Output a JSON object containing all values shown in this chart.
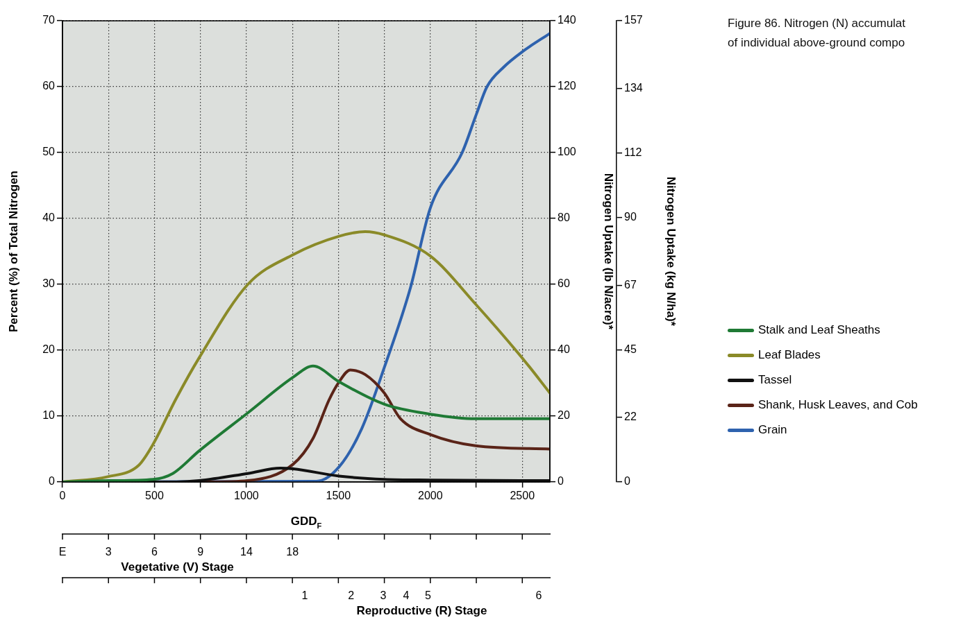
{
  "chart_data": {
    "type": "line",
    "annotations": [
      "Figure 86. Nitrogen (N) accumulat",
      "of individual above-ground compo",
      {
        "text": "E",
        "x": 0
      },
      {
        "text": "3",
        "x": 250
      },
      {
        "text": "6",
        "x": 500
      },
      {
        "text": "9",
        "x": 750
      },
      {
        "text": "14",
        "x": 1000
      },
      {
        "text": "18",
        "x": 1250
      },
      "Vegetative (V) Stage",
      "1",
      "2",
      "3",
      "4",
      "5",
      "6",
      "Reproductive (R) Stage"
    ],
    "xlabel": "GDD$_{F}$",
    "ylabel": "Percent (%) of Total Nitrogen",
    "y2label": "Nitrogen Uptake (lb N/acre)*",
    "y3label": "Nitrogen Uptake (kg N/ha)*",
    "xlim": [
      0,
      2650
    ],
    "xticks": [
      0,
      {
        "value": 250,
        "label": null
      },
      500,
      {
        "value": 750,
        "label": null
      },
      1000,
      {
        "value": 1250,
        "label": null
      },
      1500,
      {
        "value": 1750,
        "label": null
      },
      2000,
      {
        "value": 2250,
        "label": null
      },
      2500
    ],
    "ylim": [
      0,
      70
    ],
    "yticks": [
      0,
      10,
      20,
      30,
      40,
      50,
      60,
      70
    ],
    "y2lim": [
      0,
      140
    ],
    "y2ticks": [
      0,
      20,
      40,
      60,
      80,
      100,
      120,
      140
    ],
    "y3lim": [
      0,
      157
    ],
    "y3ticks": [
      0,
      22,
      45,
      67,
      90,
      112,
      134,
      157
    ],
    "grid": true,
    "legend": "right",
    "line_style": "solid",
    "marker": "none",
    "series": [
      {
        "name": "Stalk and Leaf Sheaths",
        "color": "#1f7a35",
        "x": [
          0,
          250,
          492,
          600,
          742,
          1008,
          1254,
          1362,
          1504,
          1750,
          2000,
          2246,
          2650
        ],
        "values": [
          0,
          0.2,
          0.4,
          1.3,
          4.7,
          10.5,
          15.9,
          17.6,
          15.2,
          11.8,
          10.3,
          9.6,
          9.6
        ]
      },
      {
        "name": "Leaf Blades",
        "color": "#8a8a28",
        "x": [
          0,
          246,
          413,
          492,
          615,
          742,
          1008,
          1254,
          1504,
          1646,
          1750,
          2000,
          2246,
          2515,
          2650
        ],
        "values": [
          0,
          0.8,
          2.5,
          5.7,
          12.5,
          18.8,
          30,
          34.5,
          37.3,
          38,
          37.5,
          34.3,
          27,
          18.3,
          13.5
        ]
      },
      {
        "name": "Tassel",
        "color": "#111111",
        "x": [
          0,
          600,
          742,
          1008,
          1185,
          1254,
          1504,
          1750,
          2000,
          2650
        ],
        "values": [
          0,
          0,
          0.2,
          1.3,
          2.1,
          2,
          0.9,
          0.4,
          0.3,
          0.2
        ]
      },
      {
        "name": "Shank, Husk Leaves, and Cob",
        "color": "#5a2418",
        "x": [
          0,
          800,
          1008,
          1254,
          1362,
          1450,
          1504,
          1565,
          1646,
          1750,
          1838,
          2000,
          2246,
          2650
        ],
        "values": [
          0,
          0,
          0.2,
          2.7,
          6.6,
          12.5,
          15.2,
          17,
          16.3,
          13.5,
          9.6,
          7.2,
          5.5,
          5
        ]
      },
      {
        "name": "Grain",
        "color": "#2e62ae",
        "x": [
          0,
          1381,
          1504,
          1627,
          1750,
          1892,
          2000,
          2173,
          2250,
          2308,
          2400,
          2500,
          2650
        ],
        "values": [
          0,
          0.1,
          2.3,
          8.1,
          17.4,
          29.5,
          41.6,
          50,
          55.8,
          60,
          63,
          65.3,
          68.1
        ]
      }
    ]
  }
}
